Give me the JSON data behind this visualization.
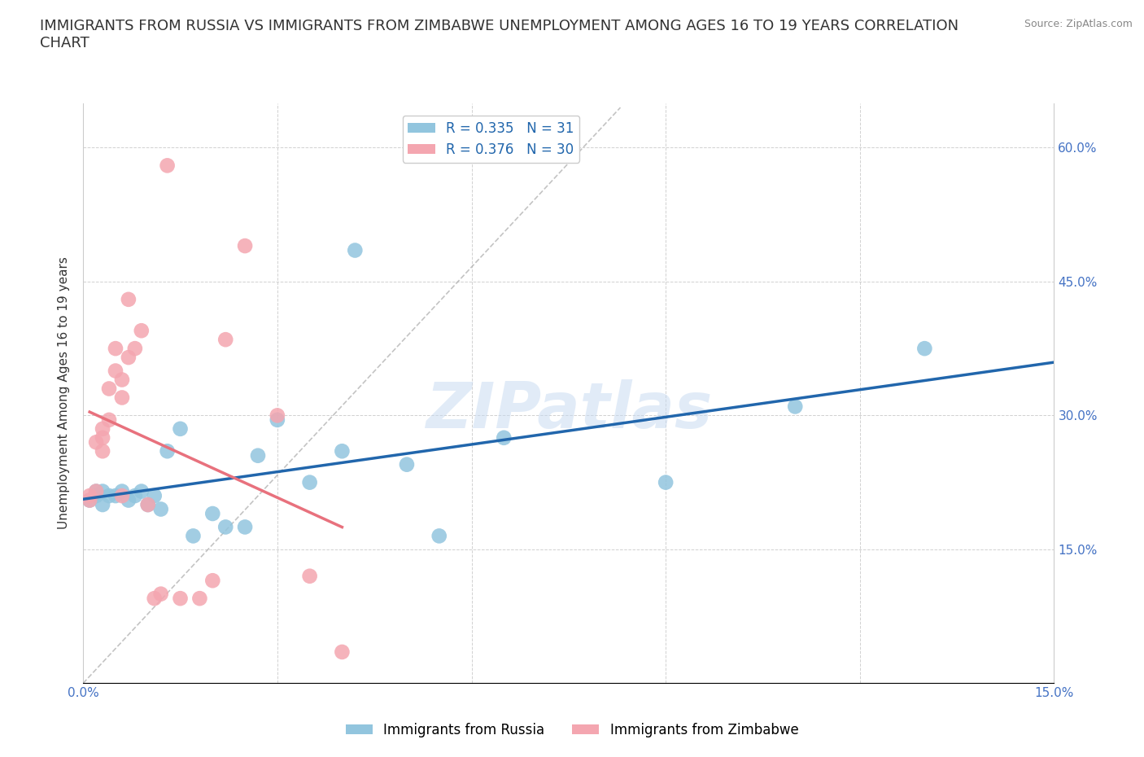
{
  "title": "IMMIGRANTS FROM RUSSIA VS IMMIGRANTS FROM ZIMBABWE UNEMPLOYMENT AMONG AGES 16 TO 19 YEARS CORRELATION\nCHART",
  "source_text": "Source: ZipAtlas.com",
  "ylabel": "Unemployment Among Ages 16 to 19 years",
  "watermark": "ZIPatlas",
  "xlim": [
    0.0,
    0.15
  ],
  "ylim": [
    0.0,
    0.65
  ],
  "xticks": [
    0.0,
    0.03,
    0.06,
    0.09,
    0.12,
    0.15
  ],
  "yticks": [
    0.0,
    0.15,
    0.3,
    0.45,
    0.6
  ],
  "xtick_labels": [
    "0.0%",
    "",
    "",
    "",
    "",
    "15.0%"
  ],
  "ytick_labels_right": [
    "",
    "15.0%",
    "30.0%",
    "45.0%",
    "60.0%"
  ],
  "russia_color": "#92C5DE",
  "zimbabwe_color": "#F4A6B0",
  "russia_line_color": "#2166AC",
  "zimbabwe_line_color": "#E8717D",
  "russia_R": 0.335,
  "russia_N": 31,
  "zimbabwe_R": 0.376,
  "zimbabwe_N": 30,
  "russia_x": [
    0.001,
    0.002,
    0.002,
    0.003,
    0.003,
    0.004,
    0.005,
    0.006,
    0.007,
    0.008,
    0.009,
    0.01,
    0.011,
    0.012,
    0.013,
    0.015,
    0.017,
    0.02,
    0.022,
    0.025,
    0.027,
    0.03,
    0.035,
    0.04,
    0.042,
    0.05,
    0.055,
    0.065,
    0.09,
    0.11,
    0.13
  ],
  "russia_y": [
    0.205,
    0.21,
    0.215,
    0.2,
    0.215,
    0.21,
    0.21,
    0.215,
    0.205,
    0.21,
    0.215,
    0.2,
    0.21,
    0.195,
    0.26,
    0.285,
    0.165,
    0.19,
    0.175,
    0.175,
    0.255,
    0.295,
    0.225,
    0.26,
    0.485,
    0.245,
    0.165,
    0.275,
    0.225,
    0.31,
    0.375
  ],
  "zimbabwe_x": [
    0.001,
    0.001,
    0.002,
    0.002,
    0.003,
    0.003,
    0.003,
    0.004,
    0.004,
    0.005,
    0.005,
    0.006,
    0.006,
    0.006,
    0.007,
    0.007,
    0.008,
    0.009,
    0.01,
    0.011,
    0.012,
    0.013,
    0.015,
    0.018,
    0.02,
    0.022,
    0.025,
    0.03,
    0.035,
    0.04
  ],
  "zimbabwe_y": [
    0.205,
    0.21,
    0.27,
    0.215,
    0.26,
    0.275,
    0.285,
    0.295,
    0.33,
    0.35,
    0.375,
    0.32,
    0.34,
    0.21,
    0.365,
    0.43,
    0.375,
    0.395,
    0.2,
    0.095,
    0.1,
    0.58,
    0.095,
    0.095,
    0.115,
    0.385,
    0.49,
    0.3,
    0.12,
    0.035
  ],
  "diag_line_x": [
    0.0,
    0.083
  ],
  "diag_line_y": [
    0.0,
    0.645
  ],
  "grid_color": "#CCCCCC",
  "background_color": "#FFFFFF",
  "title_fontsize": 13,
  "axis_label_fontsize": 11,
  "tick_fontsize": 11,
  "legend_fontsize": 12
}
